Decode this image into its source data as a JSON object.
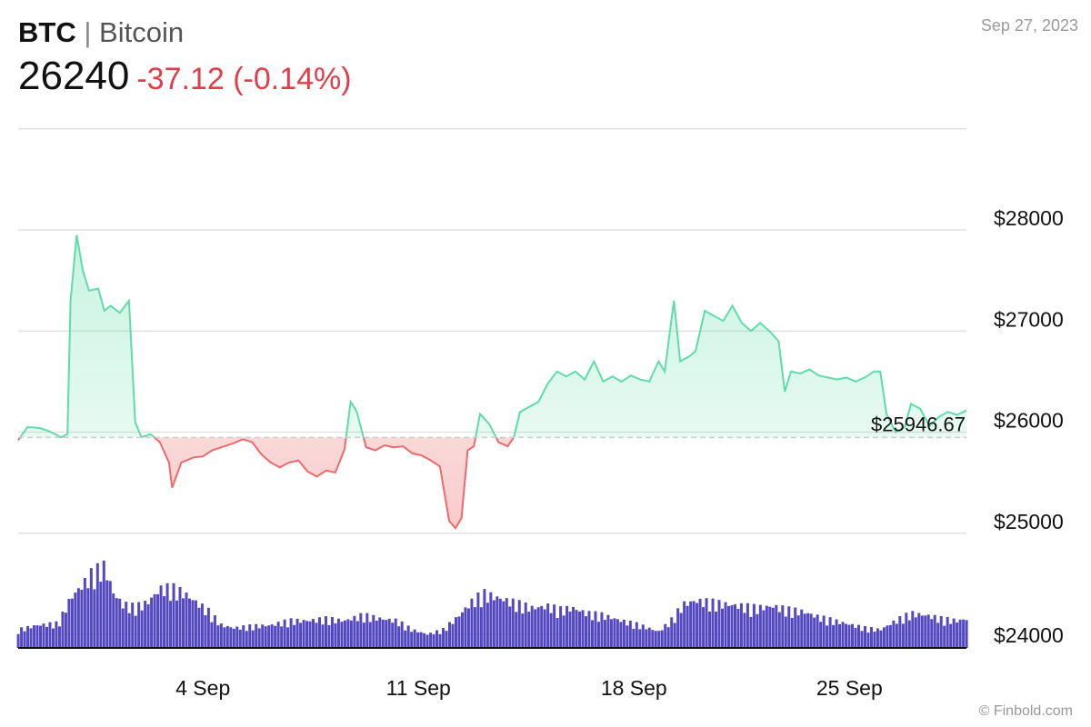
{
  "header": {
    "symbol": "BTC",
    "separator": "|",
    "name": "Bitcoin",
    "price": "26240",
    "change": "-37.12 (-0.14%)",
    "date": "Sep 27, 2023"
  },
  "credit": "© Finbold.com",
  "colors": {
    "up": "#5fdca8",
    "down": "#ee6a6a",
    "volume": "#5348c0",
    "grid": "#dddddd"
  },
  "chart_data": {
    "type": "line",
    "title": "",
    "xlabel": "",
    "ylabel": "",
    "x_ticks": [
      {
        "day": 4,
        "label": "4 Sep"
      },
      {
        "day": 11,
        "label": "11 Sep"
      },
      {
        "day": 18,
        "label": "18 Sep"
      },
      {
        "day": 25,
        "label": "25 Sep"
      }
    ],
    "y_ticks": [
      {
        "value": 28000,
        "label": "$28000"
      },
      {
        "value": 27000,
        "label": "$27000"
      },
      {
        "value": 26000,
        "label": "$26000"
      },
      {
        "value": 25000,
        "label": "$25000"
      },
      {
        "value": 24000,
        "label": "$24000"
      }
    ],
    "ylim": [
      24000,
      29000
    ],
    "xlim": [
      29,
      27
    ],
    "reference": {
      "value": 25946.67,
      "label": "$25946.67"
    },
    "series": [
      {
        "values": [
          [
            29.0,
            25920
          ],
          [
            29.3,
            26050
          ],
          [
            29.7,
            26040
          ],
          [
            30.0,
            26010
          ],
          [
            30.4,
            25950
          ],
          [
            30.6,
            25980
          ],
          [
            30.7,
            27300
          ],
          [
            30.9,
            27950
          ],
          [
            31.1,
            27600
          ],
          [
            31.3,
            27400
          ],
          [
            31.6,
            27420
          ],
          [
            31.8,
            27200
          ],
          [
            32.0,
            27250
          ],
          [
            32.3,
            27180
          ],
          [
            32.6,
            27300
          ],
          [
            32.8,
            26100
          ],
          [
            33.0,
            25950
          ],
          [
            33.3,
            25980
          ],
          [
            33.6,
            25900
          ],
          [
            33.9,
            25700
          ],
          [
            34.0,
            25450
          ],
          [
            34.3,
            25700
          ],
          [
            34.7,
            25750
          ],
          [
            35.0,
            25760
          ],
          [
            35.3,
            25820
          ],
          [
            35.7,
            25860
          ],
          [
            36.0,
            25890
          ],
          [
            36.3,
            25930
          ],
          [
            36.6,
            25900
          ],
          [
            36.9,
            25780
          ],
          [
            37.2,
            25700
          ],
          [
            37.5,
            25650
          ],
          [
            37.8,
            25700
          ],
          [
            38.1,
            25720
          ],
          [
            38.4,
            25610
          ],
          [
            38.7,
            25560
          ],
          [
            39.0,
            25620
          ],
          [
            39.3,
            25600
          ],
          [
            39.6,
            25830
          ],
          [
            39.8,
            26300
          ],
          [
            40.0,
            26200
          ],
          [
            40.3,
            25850
          ],
          [
            40.6,
            25820
          ],
          [
            40.9,
            25870
          ],
          [
            41.2,
            25850
          ],
          [
            41.5,
            25860
          ],
          [
            41.8,
            25790
          ],
          [
            42.1,
            25770
          ],
          [
            42.4,
            25720
          ],
          [
            42.7,
            25660
          ],
          [
            43.0,
            25120
          ],
          [
            43.2,
            25050
          ],
          [
            43.4,
            25150
          ],
          [
            43.6,
            25820
          ],
          [
            43.8,
            25860
          ],
          [
            44.0,
            26180
          ],
          [
            44.3,
            26080
          ],
          [
            44.6,
            25900
          ],
          [
            44.9,
            25860
          ],
          [
            45.1,
            25950
          ],
          [
            45.3,
            26200
          ],
          [
            45.6,
            26250
          ],
          [
            45.9,
            26300
          ],
          [
            46.2,
            26480
          ],
          [
            46.5,
            26600
          ],
          [
            46.8,
            26550
          ],
          [
            47.1,
            26600
          ],
          [
            47.4,
            26520
          ],
          [
            47.7,
            26700
          ],
          [
            48.0,
            26500
          ],
          [
            48.3,
            26550
          ],
          [
            48.6,
            26500
          ],
          [
            48.9,
            26560
          ],
          [
            49.2,
            26520
          ],
          [
            49.5,
            26500
          ],
          [
            49.8,
            26700
          ],
          [
            50.0,
            26600
          ],
          [
            50.3,
            27300
          ],
          [
            50.5,
            26700
          ],
          [
            50.8,
            26750
          ],
          [
            51.0,
            26800
          ],
          [
            51.3,
            27200
          ],
          [
            51.6,
            27150
          ],
          [
            51.9,
            27100
          ],
          [
            52.2,
            27250
          ],
          [
            52.5,
            27080
          ],
          [
            52.8,
            27000
          ],
          [
            53.1,
            27080
          ],
          [
            53.4,
            27000
          ],
          [
            53.7,
            26900
          ],
          [
            53.9,
            26400
          ],
          [
            54.1,
            26600
          ],
          [
            54.4,
            26580
          ],
          [
            54.7,
            26620
          ],
          [
            55.0,
            26560
          ],
          [
            55.3,
            26540
          ],
          [
            55.6,
            26520
          ],
          [
            55.9,
            26540
          ],
          [
            56.2,
            26500
          ],
          [
            56.5,
            26540
          ],
          [
            56.8,
            26600
          ],
          [
            57.0,
            26600
          ],
          [
            57.2,
            26180
          ],
          [
            57.5,
            26000
          ],
          [
            57.8,
            26050
          ],
          [
            58.0,
            26280
          ],
          [
            58.3,
            26230
          ],
          [
            58.6,
            26060
          ],
          [
            58.9,
            26150
          ],
          [
            59.2,
            26200
          ],
          [
            59.5,
            26170
          ],
          [
            59.8,
            26215
          ]
        ]
      }
    ],
    "volume": {
      "values": [
        [
          29.0,
          0.2
        ],
        [
          29.6,
          0.25
        ],
        [
          30.3,
          0.27
        ],
        [
          30.7,
          0.55
        ],
        [
          31.1,
          0.7
        ],
        [
          31.4,
          0.82
        ],
        [
          31.8,
          0.9
        ],
        [
          32.1,
          0.6
        ],
        [
          32.4,
          0.48
        ],
        [
          32.8,
          0.45
        ],
        [
          33.2,
          0.5
        ],
        [
          33.6,
          0.65
        ],
        [
          34.0,
          0.66
        ],
        [
          34.4,
          0.6
        ],
        [
          34.8,
          0.5
        ],
        [
          35.2,
          0.4
        ],
        [
          35.6,
          0.25
        ],
        [
          36.0,
          0.22
        ],
        [
          36.6,
          0.24
        ],
        [
          37.2,
          0.25
        ],
        [
          37.8,
          0.3
        ],
        [
          38.4,
          0.3
        ],
        [
          39.0,
          0.32
        ],
        [
          39.6,
          0.3
        ],
        [
          40.2,
          0.36
        ],
        [
          40.8,
          0.32
        ],
        [
          41.3,
          0.3
        ],
        [
          41.8,
          0.2
        ],
        [
          42.3,
          0.15
        ],
        [
          42.8,
          0.2
        ],
        [
          43.3,
          0.35
        ],
        [
          43.7,
          0.5
        ],
        [
          44.1,
          0.6
        ],
        [
          44.5,
          0.56
        ],
        [
          44.9,
          0.52
        ],
        [
          45.3,
          0.48
        ],
        [
          45.7,
          0.44
        ],
        [
          46.2,
          0.46
        ],
        [
          46.6,
          0.42
        ],
        [
          47.0,
          0.44
        ],
        [
          47.5,
          0.38
        ],
        [
          48.0,
          0.36
        ],
        [
          48.6,
          0.3
        ],
        [
          49.2,
          0.25
        ],
        [
          49.8,
          0.18
        ],
        [
          50.2,
          0.3
        ],
        [
          50.6,
          0.48
        ],
        [
          51.0,
          0.52
        ],
        [
          51.5,
          0.5
        ],
        [
          52.0,
          0.48
        ],
        [
          52.5,
          0.46
        ],
        [
          53.0,
          0.44
        ],
        [
          53.5,
          0.46
        ],
        [
          54.0,
          0.42
        ],
        [
          54.5,
          0.4
        ],
        [
          55.0,
          0.34
        ],
        [
          55.5,
          0.3
        ],
        [
          56.0,
          0.26
        ],
        [
          56.5,
          0.22
        ],
        [
          57.0,
          0.2
        ],
        [
          57.5,
          0.3
        ],
        [
          58.0,
          0.38
        ],
        [
          58.5,
          0.36
        ],
        [
          59.0,
          0.32
        ],
        [
          59.5,
          0.3
        ],
        [
          59.8,
          0.32
        ]
      ]
    }
  }
}
